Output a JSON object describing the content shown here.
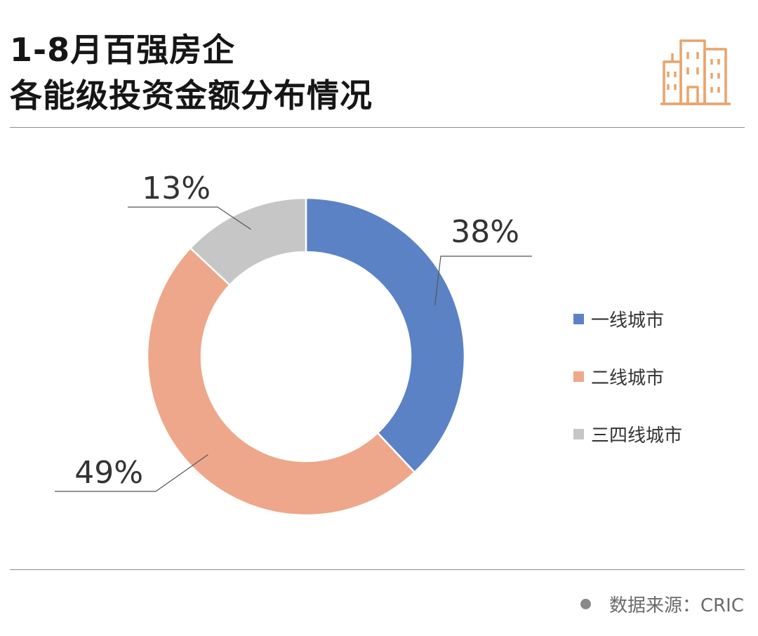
{
  "header": {
    "title_line1": "1-8月百强房企",
    "title_line2": "各能级投资金额分布情况",
    "icon": "building-icon"
  },
  "chart_data": {
    "type": "pie",
    "style": "donut",
    "categories": [
      "一线城市",
      "二线城市",
      "三四线城市"
    ],
    "values": [
      38,
      49,
      13
    ],
    "labels": [
      "38%",
      "49%",
      "13%"
    ],
    "unit": "%",
    "colors": [
      "#5b82c5",
      "#eea78a",
      "#c6c6c6"
    ],
    "legend_position": "right"
  },
  "footer": {
    "source": "数据来源：CRIC"
  }
}
